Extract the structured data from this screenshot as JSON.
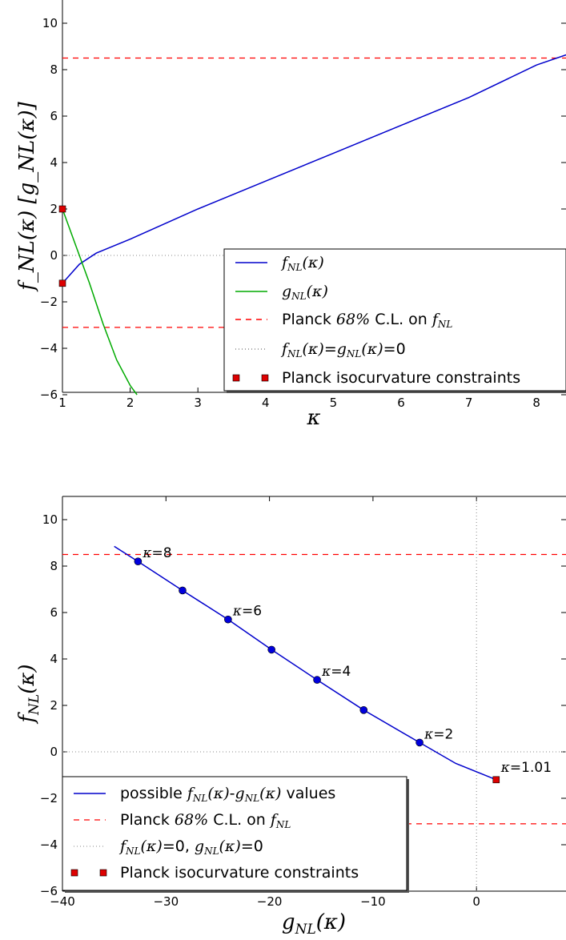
{
  "chart_data": [
    {
      "type": "line",
      "xlabel": "κ",
      "ylabel": "f_NL(κ) [g_NL(κ)]",
      "xlim": [
        1,
        8.5
      ],
      "ylim": [
        -6,
        11
      ],
      "xticks": [
        "1",
        "2",
        "3",
        "4",
        "5",
        "6",
        "7",
        "8"
      ],
      "yticks": [
        "−6",
        "−4",
        "−2",
        "0",
        "2",
        "4",
        "6",
        "8",
        "10"
      ],
      "grid": false,
      "legend_position": "lower-right",
      "series": [
        {
          "name": "f_NL(κ)",
          "color": "#0000cc",
          "style": "solid",
          "x": [
            1.0,
            1.25,
            1.5,
            2.0,
            3.0,
            4.0,
            5.0,
            6.0,
            7.0,
            8.0,
            8.5
          ],
          "y": [
            -1.2,
            -0.38,
            0.1,
            0.7,
            2.0,
            3.2,
            4.4,
            5.6,
            6.8,
            8.2,
            8.7
          ]
        },
        {
          "name": "g_NL(κ)",
          "color": "#00aa00",
          "style": "solid",
          "x": [
            1.0,
            1.2,
            1.4,
            1.6,
            1.8,
            2.0,
            2.1
          ],
          "y": [
            2.0,
            0.4,
            -1.2,
            -2.95,
            -4.5,
            -5.6,
            -6.0
          ]
        },
        {
          "name": "Planck 68% C.L. on f_NL",
          "color": "#ff0000",
          "style": "dashed",
          "hlines": [
            8.5,
            -3.1
          ]
        },
        {
          "name": "f_NL(κ)=g_NL(κ)=0",
          "color": "#888888",
          "style": "dotted",
          "hlines": [
            0
          ]
        },
        {
          "name": "Planck isocurvature constraints",
          "color": "#dd0000",
          "style": "marker-square",
          "x": [
            1.0,
            1.0
          ],
          "y": [
            2.0,
            -1.2
          ]
        }
      ],
      "legend": [
        {
          "kind": "line",
          "color": "#0000cc",
          "dash": "",
          "math": "f",
          "sub": "NL",
          "tail": "(κ)",
          "pre": ""
        },
        {
          "kind": "line",
          "color": "#00aa00",
          "dash": "",
          "math": "g",
          "sub": "NL",
          "tail": "(κ)",
          "pre": ""
        },
        {
          "kind": "line",
          "color": "#ff0000",
          "dash": "7,6",
          "pre": "Planck ",
          "mid": "68%",
          "post": " C.L. on ",
          "math": "f",
          "sub": "NL"
        },
        {
          "kind": "line",
          "color": "#888888",
          "dash": "1,3",
          "custom": "fg0"
        },
        {
          "kind": "marker",
          "color": "#dd0000",
          "text": "Planck isocurvature constraints"
        }
      ]
    },
    {
      "type": "line",
      "xlabel": "g_NL(κ)",
      "ylabel": "f_NL(κ)",
      "xlim": [
        -40,
        8
      ],
      "ylim": [
        -6,
        11
      ],
      "xticks": [
        "−40",
        "−30",
        "−20",
        "−10",
        "0"
      ],
      "yticks": [
        "−6",
        "−4",
        "−2",
        "0",
        "2",
        "4",
        "6",
        "8",
        "10"
      ],
      "grid": false,
      "legend_position": "lower-left",
      "curve": {
        "x": [
          -35.0,
          -32.7,
          -28.4,
          -24.0,
          -19.8,
          -15.4,
          -10.9,
          -5.5,
          -2.0,
          1.9
        ],
        "y": [
          8.85,
          8.2,
          6.95,
          5.7,
          4.4,
          3.1,
          1.8,
          0.4,
          -0.5,
          -1.2
        ]
      },
      "points": [
        {
          "x": -32.7,
          "y": 8.2,
          "label": "κ=8"
        },
        {
          "x": -28.4,
          "y": 6.95,
          "label": ""
        },
        {
          "x": -24.0,
          "y": 5.7,
          "label": "κ=6"
        },
        {
          "x": -19.8,
          "y": 4.4,
          "label": ""
        },
        {
          "x": -15.4,
          "y": 3.1,
          "label": "κ=4"
        },
        {
          "x": -10.9,
          "y": 1.8,
          "label": ""
        },
        {
          "x": -5.5,
          "y": 0.4,
          "label": "κ=2"
        }
      ],
      "constraint_point": {
        "x": 1.9,
        "y": -1.2,
        "label": "κ=1.01"
      },
      "hlines_dashed": [
        8.5,
        -3.1
      ],
      "hline_dotted": 0,
      "vline_dotted": 0,
      "legend": [
        {
          "text_pre": "possible ",
          "text_post": " values"
        },
        {
          "text": "Planck 68% C.L. on f_NL"
        },
        {
          "text": "f_NL(κ)=0, g_NL(κ)=0"
        },
        {
          "text": "Planck isocurvature constraints"
        }
      ]
    }
  ]
}
